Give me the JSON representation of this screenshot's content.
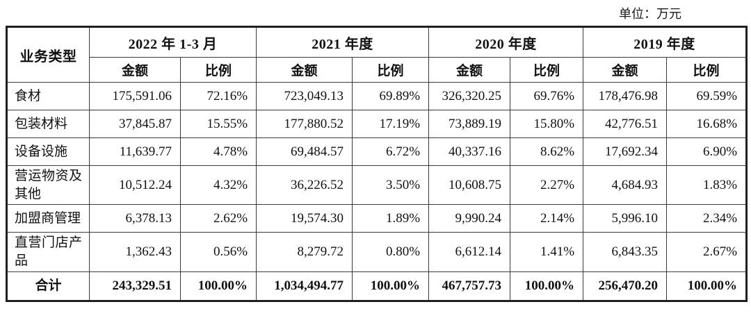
{
  "unit_label": "单位：万元",
  "table": {
    "corner_header": "业务类型",
    "amount_header": "金额",
    "ratio_header": "比例",
    "periods": [
      "2022 年 1-3 月",
      "2021 年度",
      "2020 年度",
      "2019 年度"
    ],
    "rows": [
      {
        "label": "食材",
        "values": [
          "175,591.06",
          "72.16%",
          "723,049.13",
          "69.89%",
          "326,320.25",
          "69.76%",
          "178,476.98",
          "69.59%"
        ]
      },
      {
        "label": "包装材料",
        "values": [
          "37,845.87",
          "15.55%",
          "177,880.52",
          "17.19%",
          "73,889.19",
          "15.80%",
          "42,776.51",
          "16.68%"
        ]
      },
      {
        "label": "设备设施",
        "values": [
          "11,639.77",
          "4.78%",
          "69,484.57",
          "6.72%",
          "40,337.16",
          "8.62%",
          "17,692.34",
          "6.90%"
        ]
      },
      {
        "label": "营运物资及其他",
        "values": [
          "10,512.24",
          "4.32%",
          "36,226.52",
          "3.50%",
          "10,608.75",
          "2.27%",
          "4,684.93",
          "1.83%"
        ]
      },
      {
        "label": "加盟商管理",
        "values": [
          "6,378.13",
          "2.62%",
          "19,574.30",
          "1.89%",
          "9,990.24",
          "2.14%",
          "5,996.10",
          "2.34%"
        ]
      },
      {
        "label": "直营门店产品",
        "values": [
          "1,362.43",
          "0.56%",
          "8,279.72",
          "0.80%",
          "6,612.14",
          "1.41%",
          "6,843.35",
          "2.67%"
        ]
      }
    ],
    "total_row": {
      "label": "合计",
      "values": [
        "243,329.51",
        "100.00%",
        "1,034,494.77",
        "100.00%",
        "467,757.73",
        "100.00%",
        "256,470.20",
        "100.00%"
      ]
    }
  }
}
